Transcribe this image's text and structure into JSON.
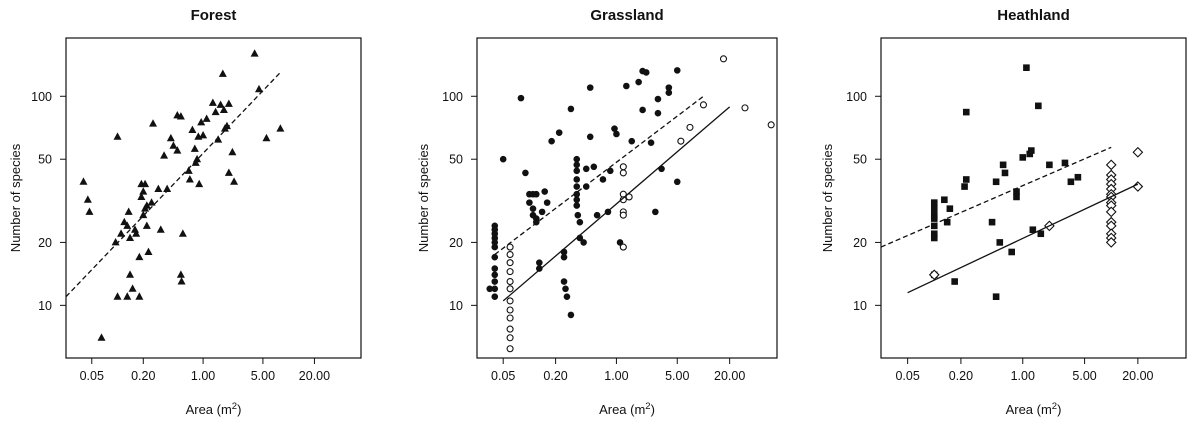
{
  "figure": {
    "xlabel": "Area (m",
    "xlabel_sup": "2",
    "xlabel_end": ")",
    "ylabel": "Number of species"
  },
  "colors": {
    "ink": "#111111",
    "paper": "#ffffff"
  },
  "chart_data": [
    {
      "type": "scatter",
      "title": "Forest",
      "xlabel": "Area (m2)",
      "ylabel": "Number of species",
      "x_scale": "log",
      "y_scale": "log",
      "xlim": [
        0.025,
        70
      ],
      "ylim": [
        5.6,
        190
      ],
      "x_ticks": [
        0.05,
        0.2,
        1,
        5,
        20
      ],
      "x_tick_labels": [
        "0.05",
        "0.20",
        "1.00",
        "5.00",
        "20.00"
      ],
      "y_ticks": [
        10,
        20,
        50,
        100
      ],
      "y_tick_labels": [
        "10",
        "20",
        "50",
        "100"
      ],
      "series": [
        {
          "marker": "filled-triangle",
          "points": [
            [
              0.04,
              39
            ],
            [
              0.045,
              32
            ],
            [
              0.047,
              28
            ],
            [
              0.1,
              64
            ],
            [
              0.095,
              20
            ],
            [
              0.1,
              11
            ],
            [
              0.11,
              22
            ],
            [
              0.12,
              25
            ],
            [
              0.13,
              24
            ],
            [
              0.13,
              11
            ],
            [
              0.135,
              28
            ],
            [
              0.14,
              21
            ],
            [
              0.14,
              14
            ],
            [
              0.15,
              12
            ],
            [
              0.16,
              23
            ],
            [
              0.165,
              22
            ],
            [
              0.18,
              11
            ],
            [
              0.18,
              17
            ],
            [
              0.19,
              38
            ],
            [
              0.19,
              33
            ],
            [
              0.2,
              27
            ],
            [
              0.2,
              35
            ],
            [
              0.21,
              29
            ],
            [
              0.21,
              38
            ],
            [
              0.22,
              24
            ],
            [
              0.22,
              30
            ],
            [
              0.23,
              18
            ],
            [
              0.25,
              31
            ],
            [
              0.26,
              74
            ],
            [
              0.3,
              36
            ],
            [
              0.32,
              23
            ],
            [
              0.35,
              52
            ],
            [
              0.38,
              36
            ],
            [
              0.42,
              63
            ],
            [
              0.45,
              58
            ],
            [
              0.5,
              55
            ],
            [
              0.5,
              81
            ],
            [
              0.55,
              80
            ],
            [
              0.55,
              14
            ],
            [
              0.56,
              13
            ],
            [
              0.58,
              22
            ],
            [
              0.68,
              44
            ],
            [
              0.7,
              40
            ],
            [
              0.75,
              69
            ],
            [
              0.8,
              56
            ],
            [
              0.82,
              48
            ],
            [
              0.85,
              50
            ],
            [
              0.88,
              64
            ],
            [
              0.9,
              38
            ],
            [
              0.95,
              75
            ],
            [
              1.0,
              65
            ],
            [
              1.1,
              78
            ],
            [
              1.3,
              93
            ],
            [
              1.4,
              84
            ],
            [
              1.5,
              62
            ],
            [
              1.6,
              91
            ],
            [
              1.7,
              128
            ],
            [
              1.75,
              86
            ],
            [
              1.8,
              70
            ],
            [
              1.9,
              72
            ],
            [
              2.0,
              92
            ],
            [
              2.0,
              43
            ],
            [
              2.2,
              54
            ],
            [
              2.3,
              39
            ],
            [
              4.0,
              160
            ],
            [
              4.5,
              108
            ],
            [
              5.5,
              63
            ],
            [
              8.0,
              70
            ],
            [
              0.065,
              7
            ]
          ]
        },
        {
          "name": "",
          "style": "dashed-fit",
          "x": [
            0.025,
            8
          ],
          "y": [
            11,
            130
          ]
        }
      ]
    },
    {
      "type": "scatter",
      "title": "Grassland",
      "xlabel": "Area (m2)",
      "ylabel": "Number of species",
      "x_scale": "log",
      "y_scale": "log",
      "xlim": [
        0.025,
        70
      ],
      "ylim": [
        5.6,
        190
      ],
      "x_ticks": [
        0.05,
        0.2,
        1,
        5,
        20
      ],
      "x_tick_labels": [
        "0.05",
        "0.20",
        "1.00",
        "5.00",
        "20.00"
      ],
      "y_ticks": [
        10,
        20,
        50,
        100
      ],
      "y_tick_labels": [
        "10",
        "20",
        "50",
        "100"
      ],
      "series": [
        {
          "marker": "filled-circle",
          "points": [
            [
              0.04,
              24
            ],
            [
              0.04,
              23
            ],
            [
              0.04,
              22
            ],
            [
              0.04,
              21
            ],
            [
              0.04,
              20
            ],
            [
              0.04,
              19
            ],
            [
              0.04,
              17
            ],
            [
              0.04,
              15
            ],
            [
              0.04,
              14
            ],
            [
              0.04,
              13
            ],
            [
              0.04,
              12
            ],
            [
              0.04,
              11
            ],
            [
              0.035,
              12
            ],
            [
              0.05,
              50
            ],
            [
              0.08,
              98
            ],
            [
              0.09,
              43
            ],
            [
              0.1,
              34
            ],
            [
              0.1,
              31
            ],
            [
              0.11,
              34
            ],
            [
              0.11,
              29
            ],
            [
              0.11,
              27
            ],
            [
              0.12,
              34
            ],
            [
              0.12,
              26
            ],
            [
              0.12,
              25
            ],
            [
              0.13,
              15
            ],
            [
              0.13,
              16
            ],
            [
              0.14,
              28
            ],
            [
              0.15,
              35
            ],
            [
              0.16,
              31
            ],
            [
              0.18,
              61
            ],
            [
              0.22,
              67
            ],
            [
              0.25,
              18
            ],
            [
              0.25,
              17
            ],
            [
              0.25,
              13
            ],
            [
              0.26,
              12
            ],
            [
              0.27,
              11
            ],
            [
              0.3,
              87
            ],
            [
              0.3,
              9
            ],
            [
              0.35,
              50
            ],
            [
              0.35,
              47
            ],
            [
              0.35,
              44
            ],
            [
              0.35,
              40
            ],
            [
              0.35,
              37
            ],
            [
              0.35,
              34
            ],
            [
              0.35,
              32
            ],
            [
              0.35,
              30
            ],
            [
              0.36,
              27
            ],
            [
              0.38,
              21
            ],
            [
              0.38,
              25
            ],
            [
              0.42,
              20
            ],
            [
              0.45,
              37
            ],
            [
              0.45,
              45
            ],
            [
              0.5,
              64
            ],
            [
              0.5,
              110
            ],
            [
              0.55,
              46
            ],
            [
              0.6,
              27
            ],
            [
              0.7,
              40
            ],
            [
              0.8,
              28
            ],
            [
              0.85,
              44
            ],
            [
              0.95,
              70
            ],
            [
              1.0,
              66
            ],
            [
              1.1,
              20
            ],
            [
              1.3,
              112
            ],
            [
              1.5,
              61
            ],
            [
              1.8,
              117
            ],
            [
              2.0,
              132
            ],
            [
              2.2,
              130
            ],
            [
              2.0,
              86
            ],
            [
              2.5,
              60
            ],
            [
              3.0,
              97
            ],
            [
              3.0,
              83
            ],
            [
              3.3,
              45
            ],
            [
              4.0,
              104
            ],
            [
              4.0,
              110
            ],
            [
              5.0,
              133
            ],
            [
              5.0,
              39
            ],
            [
              2.8,
              28
            ]
          ]
        },
        {
          "marker": "open-circle",
          "points": [
            [
              0.06,
              19
            ],
            [
              0.06,
              17.5
            ],
            [
              0.06,
              16
            ],
            [
              0.06,
              14.5
            ],
            [
              0.06,
              13
            ],
            [
              0.06,
              12
            ],
            [
              0.06,
              10.5
            ],
            [
              0.06,
              9.5
            ],
            [
              0.06,
              8.7
            ],
            [
              0.06,
              7.7
            ],
            [
              0.06,
              7
            ],
            [
              0.06,
              6.2
            ],
            [
              1.2,
              46
            ],
            [
              1.2,
              43
            ],
            [
              1.2,
              34
            ],
            [
              1.2,
              32
            ],
            [
              1.2,
              28
            ],
            [
              1.2,
              27
            ],
            [
              1.2,
              19
            ],
            [
              5.5,
              61
            ],
            [
              7,
              71
            ],
            [
              10,
              91
            ],
            [
              17,
              151
            ],
            [
              30,
              88
            ],
            [
              60,
              73
            ],
            [
              1.4,
              33
            ]
          ]
        },
        {
          "name": "",
          "style": "dashed-fit",
          "x": [
            0.04,
            10
          ],
          "y": [
            17.5,
            100
          ]
        },
        {
          "name": "",
          "style": "solid-fit",
          "x": [
            0.05,
            20
          ],
          "y": [
            10.5,
            89
          ]
        }
      ]
    },
    {
      "type": "scatter",
      "title": "Heathland",
      "xlabel": "Area (m2)",
      "ylabel": "Number of species",
      "x_scale": "log",
      "y_scale": "log",
      "xlim": [
        0.025,
        70
      ],
      "ylim": [
        5.6,
        190
      ],
      "x_ticks": [
        0.05,
        0.2,
        1,
        5,
        20
      ],
      "x_tick_labels": [
        "0.05",
        "0.20",
        "1.00",
        "5.00",
        "20.00"
      ],
      "y_ticks": [
        10,
        20,
        50,
        100
      ],
      "y_tick_labels": [
        "10",
        "20",
        "50",
        "100"
      ],
      "series": [
        {
          "marker": "filled-square",
          "points": [
            [
              0.1,
              31
            ],
            [
              0.1,
              29
            ],
            [
              0.1,
              27
            ],
            [
              0.1,
              26
            ],
            [
              0.1,
              24
            ],
            [
              0.1,
              22
            ],
            [
              0.1,
              21
            ],
            [
              0.1,
              14
            ],
            [
              0.13,
              32
            ],
            [
              0.14,
              25
            ],
            [
              0.15,
              29
            ],
            [
              0.17,
              13
            ],
            [
              0.23,
              40
            ],
            [
              0.23,
              84
            ],
            [
              0.22,
              37
            ],
            [
              0.45,
              25
            ],
            [
              0.5,
              39
            ],
            [
              0.5,
              11
            ],
            [
              0.55,
              20
            ],
            [
              0.6,
              47
            ],
            [
              0.63,
              43
            ],
            [
              0.75,
              18
            ],
            [
              0.85,
              35
            ],
            [
              0.85,
              33
            ],
            [
              1.0,
              51
            ],
            [
              1.1,
              137
            ],
            [
              1.2,
              53
            ],
            [
              1.25,
              55
            ],
            [
              1.3,
              23
            ],
            [
              1.5,
              90
            ],
            [
              1.6,
              22
            ],
            [
              2.0,
              47
            ],
            [
              3.0,
              48
            ],
            [
              3.5,
              39
            ],
            [
              4.2,
              41
            ]
          ]
        },
        {
          "marker": "open-diamond",
          "points": [
            [
              0.1,
              14
            ],
            [
              2.0,
              24
            ],
            [
              10,
              47
            ],
            [
              10,
              42
            ],
            [
              10,
              40
            ],
            [
              10,
              38
            ],
            [
              10,
              36
            ],
            [
              10,
              34
            ],
            [
              10,
              33
            ],
            [
              10,
              31
            ],
            [
              10,
              30
            ],
            [
              10,
              28
            ],
            [
              10,
              25
            ],
            [
              10,
              24
            ],
            [
              10,
              22
            ],
            [
              10,
              21
            ],
            [
              10,
              20
            ],
            [
              20,
              54
            ],
            [
              20,
              37
            ]
          ]
        },
        {
          "name": "",
          "style": "dashed-fit",
          "x": [
            0.025,
            10
          ],
          "y": [
            19,
            57
          ]
        },
        {
          "name": "",
          "style": "solid-fit",
          "x": [
            0.05,
            20
          ],
          "y": [
            11.5,
            38
          ]
        }
      ]
    }
  ]
}
